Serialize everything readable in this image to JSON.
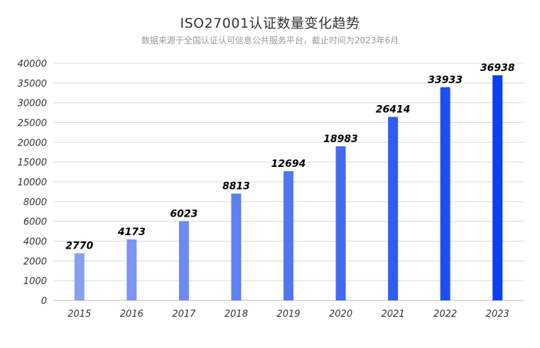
{
  "chart_data": {
    "type": "bar",
    "title": "ISO27001认证数量变化趋势",
    "subtitle": "数据来源于全国认证认可信息公共服务平台，截止时间为2023年6月",
    "xlabel": "",
    "ylabel": "",
    "categories": [
      "2015",
      "2016",
      "2017",
      "2018",
      "2019",
      "2020",
      "2021",
      "2022",
      "2023"
    ],
    "values": [
      2770,
      4173,
      6023,
      8813,
      12694,
      18983,
      26414,
      33933,
      36938
    ],
    "y_tick_labels": [
      "0",
      "1000",
      "2000",
      "4000",
      "6000",
      "8000",
      "10000",
      "15000",
      "20000",
      "25000",
      "30000",
      "35000",
      "40000"
    ],
    "y_scale": "piecewise-linear",
    "grid": true,
    "legend": "none",
    "colors": [
      "#8aa0ee",
      "#7b95f0",
      "#6d8af1",
      "#5f80f1",
      "#5176f2",
      "#406af2",
      "#2f5df1",
      "#1e50f0",
      "#0b3ff0"
    ]
  }
}
